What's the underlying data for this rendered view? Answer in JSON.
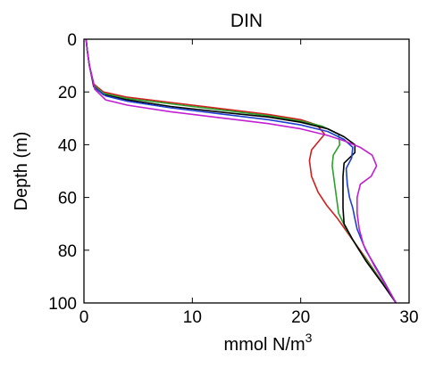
{
  "chart_data": {
    "type": "line",
    "title": "DIN",
    "xlabel": "mmol N/m",
    "xlabel_superscript": "3",
    "ylabel": "Depth (m)",
    "xlim": [
      0,
      30
    ],
    "ylim": [
      0,
      100
    ],
    "y_inverted": true,
    "x_ticks": [
      0,
      10,
      20,
      30
    ],
    "y_ticks": [
      0,
      20,
      40,
      60,
      80,
      100
    ],
    "grid": false,
    "series": [
      {
        "color": "#d11f1f",
        "points": [
          [
            0.2,
            0
          ],
          [
            0.3,
            4
          ],
          [
            0.5,
            10
          ],
          [
            0.9,
            17
          ],
          [
            1.8,
            20
          ],
          [
            4,
            22
          ],
          [
            8,
            24
          ],
          [
            13,
            26.5
          ],
          [
            17,
            28.5
          ],
          [
            20,
            30.5
          ],
          [
            21.5,
            32.5
          ],
          [
            22.2,
            36
          ],
          [
            21.6,
            39
          ],
          [
            21.0,
            42
          ],
          [
            20.8,
            46
          ],
          [
            21.0,
            52
          ],
          [
            21.6,
            58
          ],
          [
            22.4,
            63
          ],
          [
            23.4,
            68
          ],
          [
            24.6,
            75
          ],
          [
            26.0,
            83
          ],
          [
            27.5,
            92
          ],
          [
            28.8,
            100
          ]
        ]
      },
      {
        "color": "#2ca02c",
        "points": [
          [
            0.2,
            0
          ],
          [
            0.3,
            4
          ],
          [
            0.5,
            10
          ],
          [
            0.9,
            17.5
          ],
          [
            1.8,
            20.5
          ],
          [
            4,
            22.5
          ],
          [
            8,
            24.5
          ],
          [
            13,
            27
          ],
          [
            17,
            29
          ],
          [
            20,
            31
          ],
          [
            22,
            33
          ],
          [
            23.5,
            36
          ],
          [
            23.6,
            40
          ],
          [
            23.0,
            44
          ],
          [
            22.9,
            48
          ],
          [
            23.1,
            54
          ],
          [
            23.3,
            60
          ],
          [
            23.5,
            66
          ],
          [
            24.2,
            72
          ],
          [
            25.4,
            80
          ],
          [
            26.8,
            88
          ],
          [
            28.0,
            95
          ],
          [
            28.8,
            100
          ]
        ]
      },
      {
        "color": "#000000",
        "points": [
          [
            0.2,
            0
          ],
          [
            0.3,
            4
          ],
          [
            0.5,
            10
          ],
          [
            0.9,
            18
          ],
          [
            1.8,
            21
          ],
          [
            4,
            23
          ],
          [
            8,
            25.5
          ],
          [
            13,
            27.8
          ],
          [
            17,
            29.5
          ],
          [
            20,
            31.5
          ],
          [
            22.5,
            34
          ],
          [
            24,
            37
          ],
          [
            25,
            40
          ],
          [
            25.0,
            43
          ],
          [
            24.0,
            47
          ],
          [
            23.9,
            52
          ],
          [
            23.9,
            58
          ],
          [
            23.9,
            64
          ],
          [
            24.0,
            70
          ],
          [
            24.8,
            76
          ],
          [
            26.0,
            84
          ],
          [
            27.6,
            93
          ],
          [
            28.8,
            100
          ]
        ]
      },
      {
        "color": "#1f3fd1",
        "points": [
          [
            0.2,
            0
          ],
          [
            0.3,
            4
          ],
          [
            0.5,
            10
          ],
          [
            1.0,
            18.5
          ],
          [
            2,
            21.5
          ],
          [
            4,
            23.5
          ],
          [
            8,
            26
          ],
          [
            13,
            28.5
          ],
          [
            17,
            30.5
          ],
          [
            20,
            32.5
          ],
          [
            22.5,
            35
          ],
          [
            24,
            38
          ],
          [
            24.8,
            41
          ],
          [
            24.7,
            45
          ],
          [
            24.2,
            49
          ],
          [
            24.3,
            55
          ],
          [
            24.5,
            60
          ],
          [
            24.8,
            64
          ],
          [
            25.0,
            68
          ],
          [
            25.2,
            72
          ],
          [
            26.0,
            80
          ],
          [
            27.3,
            89
          ],
          [
            28.8,
            100
          ]
        ]
      },
      {
        "color": "#c21fd1",
        "points": [
          [
            0.2,
            0
          ],
          [
            0.3,
            4
          ],
          [
            0.5,
            10
          ],
          [
            1.0,
            19
          ],
          [
            2,
            23
          ],
          [
            4,
            25
          ],
          [
            8,
            27.5
          ],
          [
            13,
            30
          ],
          [
            17,
            32
          ],
          [
            20,
            34
          ],
          [
            22.5,
            36.5
          ],
          [
            24,
            38.5
          ],
          [
            25.5,
            41
          ],
          [
            26.6,
            44
          ],
          [
            27.0,
            48
          ],
          [
            26.5,
            52
          ],
          [
            25.5,
            55
          ],
          [
            25.2,
            60
          ],
          [
            25.2,
            66
          ],
          [
            25.4,
            72
          ],
          [
            25.8,
            78
          ],
          [
            26.8,
            86
          ],
          [
            27.8,
            93
          ],
          [
            28.8,
            100
          ]
        ]
      }
    ]
  }
}
